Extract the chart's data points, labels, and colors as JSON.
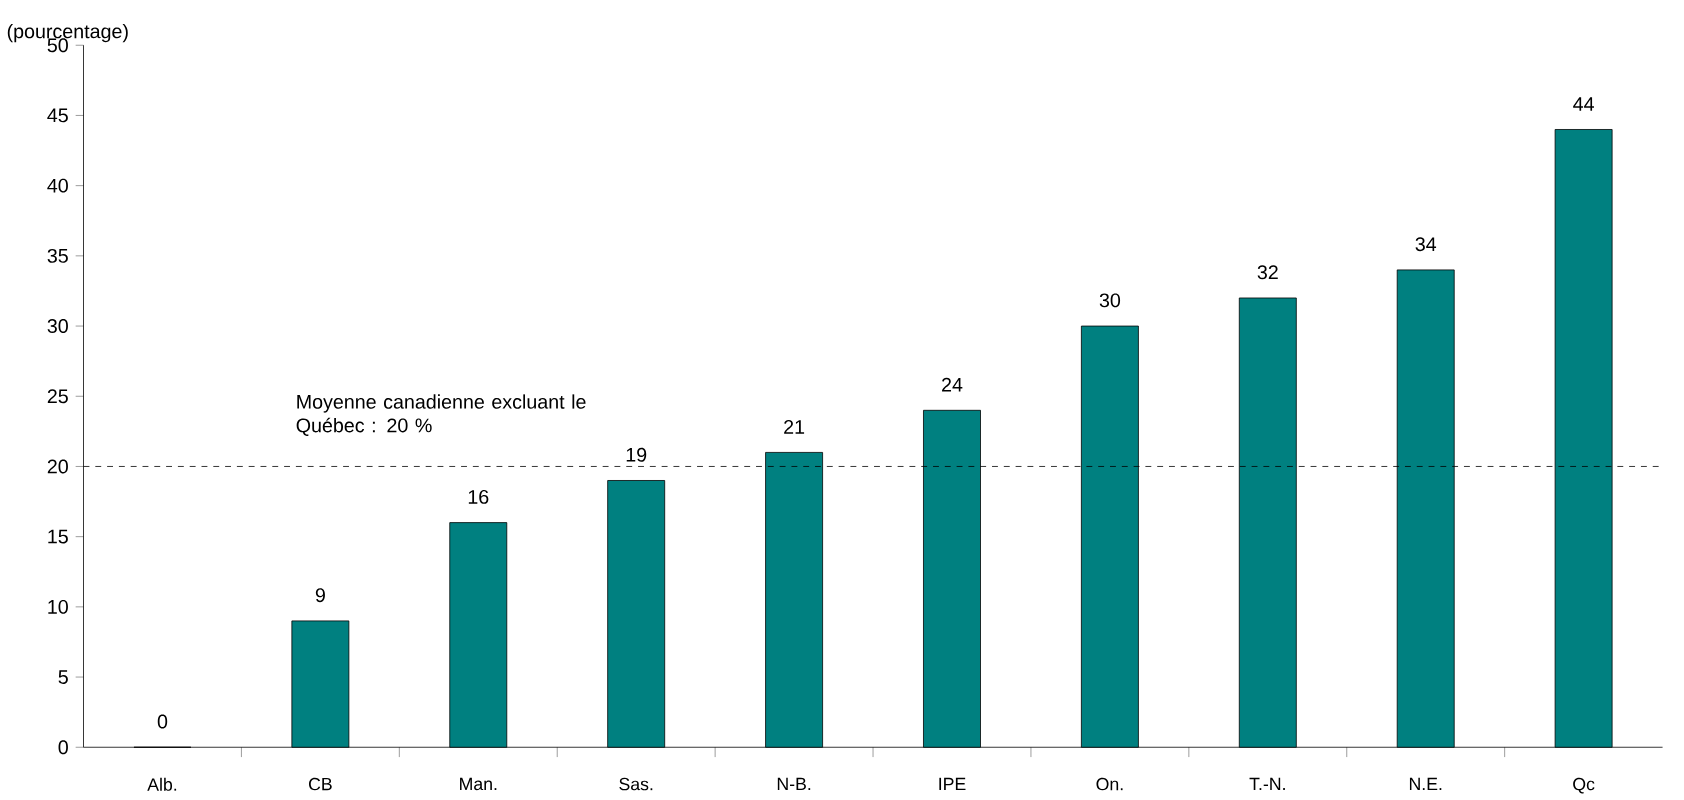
{
  "chart_data": {
    "type": "bar",
    "ylabel": "(pourcentage)",
    "categories": [
      "Alb.",
      "CB",
      "Man.",
      "Sas.",
      "N-B.",
      "IPE",
      "On.",
      "T.-N.",
      "N.E.",
      "Qc"
    ],
    "values": [
      0,
      9,
      16,
      19,
      21,
      24,
      30,
      32,
      34,
      44
    ],
    "color": "#008080",
    "data_labels": true,
    "ylim": [
      0,
      50
    ],
    "yticks": [
      0,
      5,
      10,
      15,
      20,
      25,
      30,
      35,
      40,
      45,
      50
    ],
    "ref_lines": [
      {
        "axis": "y",
        "value": 20,
        "label": "Moyenne canadienne excluant le Québec : 20 %",
        "color": "#000000",
        "line_style": "dashed"
      }
    ]
  }
}
